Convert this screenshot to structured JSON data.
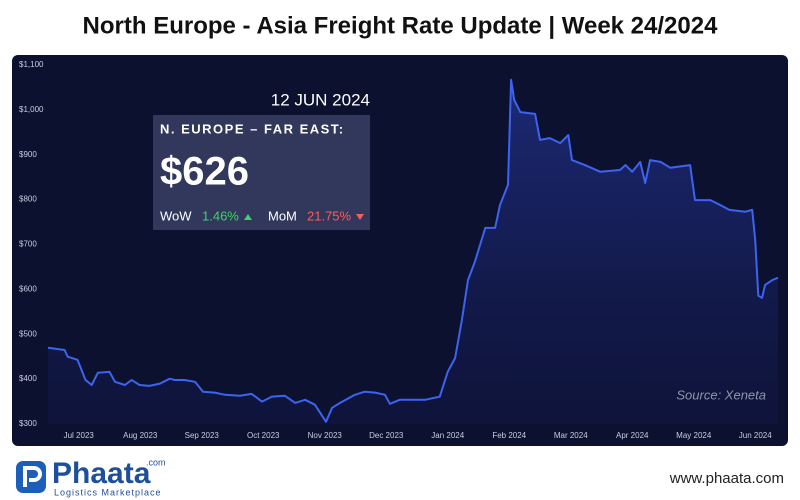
{
  "header": {
    "title": "North Europe - Asia Freight Rate Update | Week 24/2024"
  },
  "chart_data": {
    "type": "line",
    "x": [
      -0.5,
      -0.23,
      -0.18,
      -0.02,
      0.11,
      0.21,
      0.31,
      0.5,
      0.59,
      0.75,
      0.86,
      0.99,
      1.15,
      1.32,
      1.48,
      1.56,
      1.72,
      1.89,
      2.02,
      2.21,
      2.38,
      2.62,
      2.81,
      2.98,
      3.14,
      3.35,
      3.52,
      3.68,
      3.84,
      4.02,
      4.12,
      4.25,
      4.49,
      4.65,
      4.82,
      4.98,
      5.06,
      5.22,
      5.42,
      5.63,
      5.87,
      6.0,
      6.12,
      6.23,
      6.33,
      6.44,
      6.61,
      6.77,
      6.85,
      6.98,
      7.03,
      7.08,
      7.18,
      7.42,
      7.5,
      7.66,
      7.83,
      7.96,
      8.02,
      8.23,
      8.48,
      8.8,
      8.89,
      9.0,
      9.13,
      9.21,
      9.29,
      9.46,
      9.62,
      9.94,
      10.02,
      10.27,
      10.43,
      10.58,
      10.84,
      10.95,
      11.0,
      11.05,
      11.11,
      11.16,
      11.28,
      11.37
    ],
    "values": [
      470,
      465,
      450,
      443,
      398,
      387,
      414,
      416,
      394,
      387,
      398,
      387,
      385,
      390,
      401,
      398,
      398,
      394,
      372,
      370,
      365,
      363,
      367,
      350,
      361,
      363,
      347,
      354,
      343,
      305,
      336,
      347,
      365,
      372,
      370,
      365,
      345,
      354,
      354,
      354,
      361,
      416,
      447,
      532,
      621,
      661,
      737,
      737,
      788,
      833,
      1067,
      1022,
      995,
      991,
      933,
      937,
      926,
      944,
      888,
      877,
      862,
      866,
      877,
      862,
      884,
      837,
      888,
      884,
      871,
      877,
      799,
      799,
      788,
      777,
      773,
      777,
      710,
      586,
      581,
      610,
      621,
      626
    ],
    "color": "#3d63f0",
    "xlim": [
      -0.5,
      11.37
    ],
    "xticks": [
      {
        "value": 0,
        "label": "Jul 2023"
      },
      {
        "value": 1,
        "label": "Aug 2023"
      },
      {
        "value": 2,
        "label": "Sep 2023"
      },
      {
        "value": 3,
        "label": "Oct 2023"
      },
      {
        "value": 4,
        "label": "Nov 2023"
      },
      {
        "value": 5,
        "label": "Dec 2023"
      },
      {
        "value": 6,
        "label": "Jan 2024"
      },
      {
        "value": 7,
        "label": "Feb 2024"
      },
      {
        "value": 8,
        "label": "Mar 2024"
      },
      {
        "value": 9,
        "label": "Apr 2024"
      },
      {
        "value": 10,
        "label": "May 2024"
      },
      {
        "value": 11,
        "label": "Jun 2024"
      }
    ],
    "ylim": [
      300,
      1100
    ],
    "yticks": [
      {
        "value": 300,
        "label": "$300"
      },
      {
        "value": 400,
        "label": "$400"
      },
      {
        "value": 500,
        "label": "$500"
      },
      {
        "value": 600,
        "label": "$600"
      },
      {
        "value": 700,
        "label": "$700"
      },
      {
        "value": 800,
        "label": "$800"
      },
      {
        "value": 900,
        "label": "$900"
      },
      {
        "value": 1000,
        "label": "$1,000"
      },
      {
        "value": 1100,
        "label": "$1,100"
      }
    ],
    "grid": false,
    "source": "Source: Xeneta"
  },
  "annotation": {
    "date": "12 JUN 2024",
    "route": "N. EUROPE – FAR EAST:",
    "price": "$626",
    "wow_label": "WoW",
    "wow": "1.46%",
    "mom_label": "MoM",
    "mom": "21.75%"
  },
  "footer": {
    "brand": "Phaata",
    "domain": ".com",
    "tagline": "Logistics Marketplace",
    "url": "www.phaata.com"
  }
}
